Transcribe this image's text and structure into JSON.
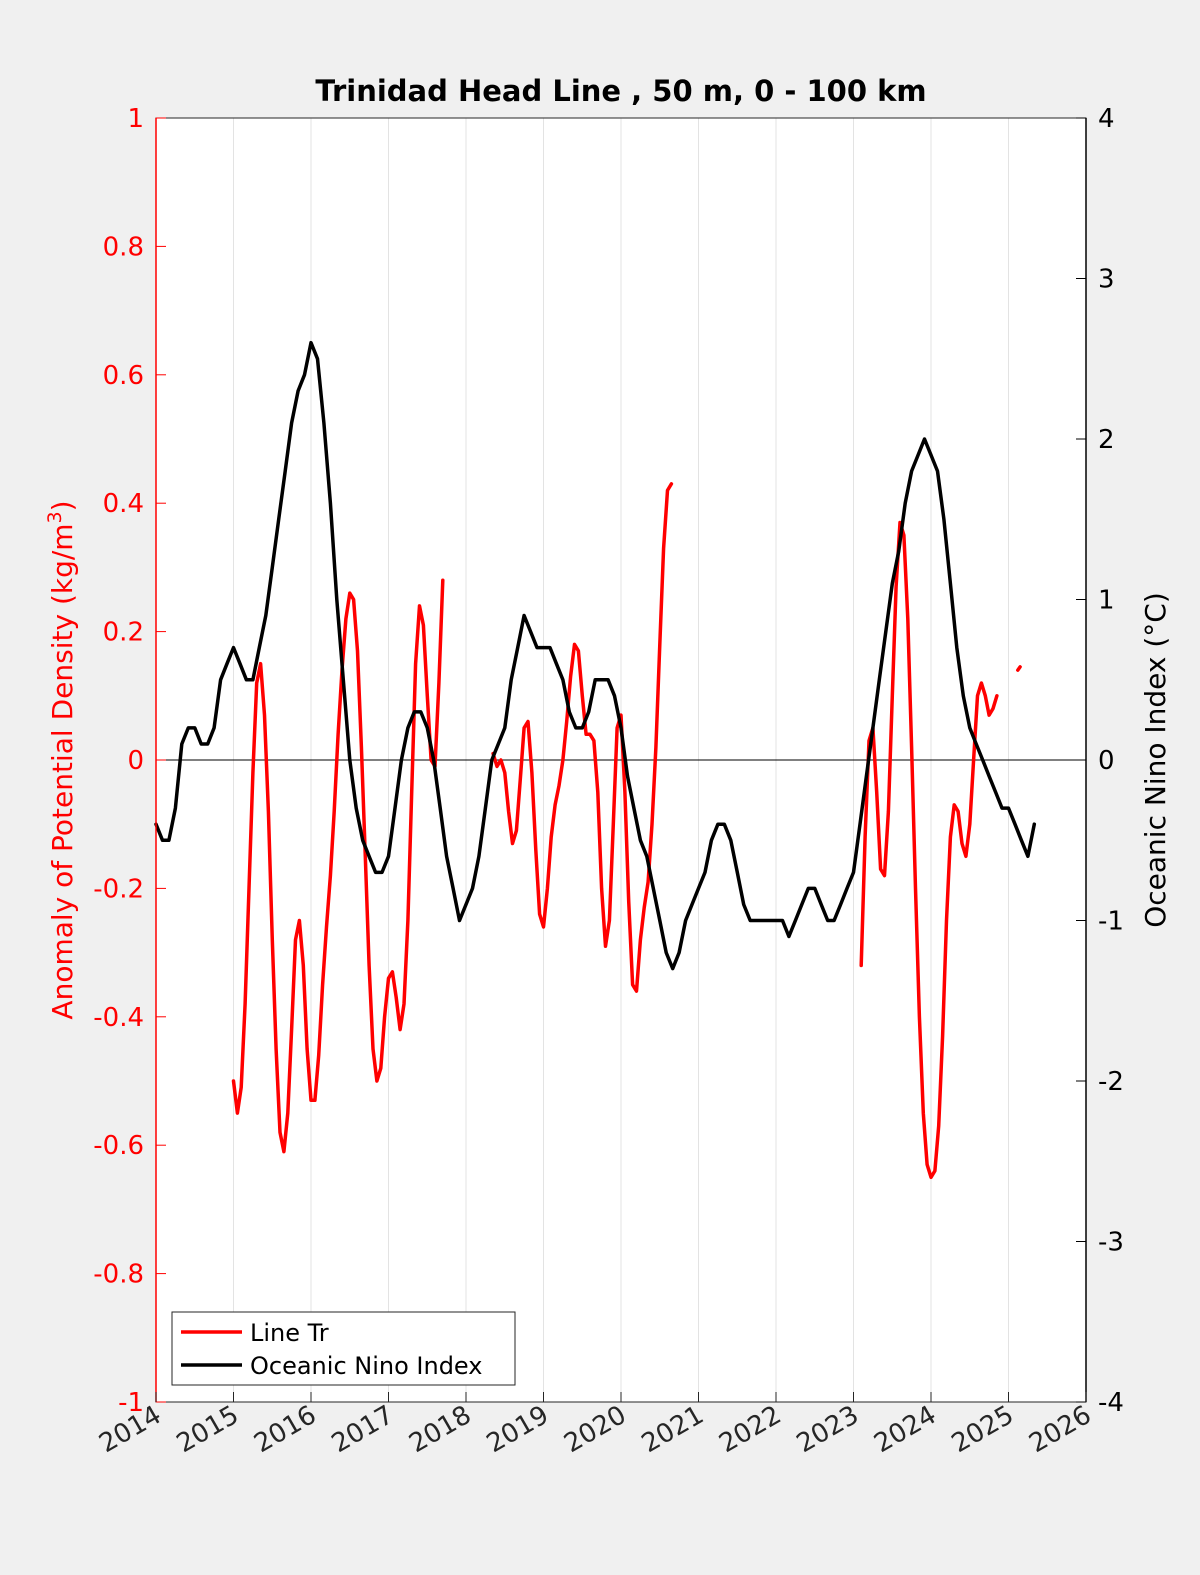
{
  "colors": {
    "figure_background": "#f0f0f0",
    "axes_background": "#ffffff",
    "left_axis": "#ff0000",
    "right_axis": "#000000",
    "grid": "#e3e3e3"
  },
  "chart_data": {
    "type": "line",
    "title": "Trinidad Head Line , 50 m, 0 - 100 km",
    "xlabel": "",
    "xlim": [
      2014,
      2026
    ],
    "xticks": [
      "2014",
      "2015",
      "2016",
      "2017",
      "2018",
      "2019",
      "2020",
      "2021",
      "2022",
      "2023",
      "2024",
      "2025",
      "2026"
    ],
    "grid": "vertical lines at each year",
    "zero_line": true,
    "y_left": {
      "label_main": "Anomaly of Potential Density (kg/m",
      "label_sup": "3",
      "label_end": ")",
      "ylim": [
        -1,
        1
      ],
      "ticks": [
        "-1",
        "-0.8",
        "-0.6",
        "-0.4",
        "-0.2",
        "0",
        "0.2",
        "0.4",
        "0.6",
        "0.8",
        "1"
      ],
      "color": "#ff0000"
    },
    "y_right": {
      "label": "Oceanic Nino Index (°C)",
      "ylim": [
        -4,
        4
      ],
      "ticks": [
        "-4",
        "-3",
        "-2",
        "-1",
        "0",
        "1",
        "2",
        "3",
        "4"
      ],
      "color": "#000000"
    },
    "legend": {
      "placement": "bottom-left",
      "entries": [
        "Line Tr",
        "Oceanic Nino Index"
      ]
    },
    "series": [
      {
        "name": "Line Tr",
        "axis": "left",
        "color": "#ff0000",
        "segments": [
          [
            [
              2015.0,
              -0.5
            ],
            [
              2015.05,
              -0.55
            ],
            [
              2015.1,
              -0.51
            ],
            [
              2015.15,
              -0.38
            ],
            [
              2015.2,
              -0.2
            ],
            [
              2015.25,
              -0.02
            ],
            [
              2015.3,
              0.12
            ],
            [
              2015.35,
              0.15
            ],
            [
              2015.4,
              0.07
            ],
            [
              2015.45,
              -0.08
            ],
            [
              2015.5,
              -0.28
            ],
            [
              2015.55,
              -0.45
            ],
            [
              2015.6,
              -0.58
            ],
            [
              2015.65,
              -0.61
            ],
            [
              2015.7,
              -0.55
            ],
            [
              2015.75,
              -0.42
            ],
            [
              2015.8,
              -0.28
            ],
            [
              2015.85,
              -0.25
            ],
            [
              2015.9,
              -0.32
            ],
            [
              2015.95,
              -0.45
            ],
            [
              2016.0,
              -0.53
            ],
            [
              2016.05,
              -0.53
            ],
            [
              2016.1,
              -0.46
            ],
            [
              2016.15,
              -0.35
            ],
            [
              2016.2,
              -0.26
            ],
            [
              2016.25,
              -0.18
            ],
            [
              2016.3,
              -0.08
            ],
            [
              2016.35,
              0.04
            ],
            [
              2016.4,
              0.14
            ],
            [
              2016.45,
              0.22
            ],
            [
              2016.5,
              0.26
            ],
            [
              2016.55,
              0.25
            ],
            [
              2016.6,
              0.17
            ],
            [
              2016.65,
              0.02
            ],
            [
              2016.7,
              -0.15
            ],
            [
              2016.75,
              -0.32
            ],
            [
              2016.8,
              -0.45
            ],
            [
              2016.85,
              -0.5
            ],
            [
              2016.9,
              -0.48
            ],
            [
              2016.95,
              -0.4
            ],
            [
              2017.0,
              -0.34
            ],
            [
              2017.05,
              -0.33
            ],
            [
              2017.1,
              -0.37
            ],
            [
              2017.15,
              -0.42
            ],
            [
              2017.2,
              -0.38
            ],
            [
              2017.25,
              -0.25
            ],
            [
              2017.3,
              -0.05
            ],
            [
              2017.35,
              0.15
            ],
            [
              2017.4,
              0.24
            ],
            [
              2017.45,
              0.21
            ],
            [
              2017.5,
              0.1
            ],
            [
              2017.55,
              0.0
            ],
            [
              2017.6,
              -0.01
            ],
            [
              2017.65,
              0.12
            ],
            [
              2017.7,
              0.28
            ]
          ],
          [
            [
              2018.35,
              0.01
            ],
            [
              2018.4,
              -0.01
            ],
            [
              2018.45,
              0.0
            ],
            [
              2018.5,
              -0.02
            ],
            [
              2018.55,
              -0.08
            ],
            [
              2018.6,
              -0.13
            ],
            [
              2018.65,
              -0.11
            ],
            [
              2018.7,
              -0.03
            ],
            [
              2018.75,
              0.05
            ],
            [
              2018.8,
              0.06
            ],
            [
              2018.85,
              -0.02
            ],
            [
              2018.9,
              -0.14
            ],
            [
              2018.95,
              -0.24
            ],
            [
              2019.0,
              -0.26
            ],
            [
              2019.05,
              -0.2
            ],
            [
              2019.1,
              -0.12
            ],
            [
              2019.15,
              -0.07
            ],
            [
              2019.2,
              -0.04
            ],
            [
              2019.25,
              0.0
            ],
            [
              2019.3,
              0.06
            ],
            [
              2019.35,
              0.13
            ],
            [
              2019.4,
              0.18
            ],
            [
              2019.45,
              0.17
            ],
            [
              2019.5,
              0.1
            ],
            [
              2019.55,
              0.04
            ],
            [
              2019.6,
              0.04
            ],
            [
              2019.65,
              0.03
            ],
            [
              2019.7,
              -0.05
            ],
            [
              2019.75,
              -0.2
            ],
            [
              2019.8,
              -0.29
            ],
            [
              2019.85,
              -0.25
            ],
            [
              2019.9,
              -0.1
            ],
            [
              2019.95,
              0.05
            ],
            [
              2020.0,
              0.07
            ],
            [
              2020.05,
              -0.05
            ],
            [
              2020.1,
              -0.22
            ],
            [
              2020.15,
              -0.35
            ],
            [
              2020.2,
              -0.36
            ],
            [
              2020.25,
              -0.28
            ],
            [
              2020.3,
              -0.23
            ],
            [
              2020.35,
              -0.19
            ],
            [
              2020.4,
              -0.1
            ],
            [
              2020.45,
              0.02
            ],
            [
              2020.5,
              0.18
            ],
            [
              2020.55,
              0.33
            ],
            [
              2020.6,
              0.42
            ],
            [
              2020.65,
              0.43
            ]
          ],
          [
            [
              2023.1,
              -0.32
            ],
            [
              2023.15,
              -0.12
            ],
            [
              2023.2,
              0.03
            ],
            [
              2023.25,
              0.05
            ],
            [
              2023.3,
              -0.05
            ],
            [
              2023.35,
              -0.17
            ],
            [
              2023.4,
              -0.18
            ],
            [
              2023.45,
              -0.08
            ],
            [
              2023.5,
              0.1
            ],
            [
              2023.55,
              0.27
            ],
            [
              2023.6,
              0.37
            ],
            [
              2023.65,
              0.35
            ],
            [
              2023.7,
              0.22
            ],
            [
              2023.75,
              0.02
            ],
            [
              2023.8,
              -0.2
            ],
            [
              2023.85,
              -0.4
            ],
            [
              2023.9,
              -0.55
            ],
            [
              2023.95,
              -0.63
            ],
            [
              2024.0,
              -0.65
            ],
            [
              2024.05,
              -0.64
            ],
            [
              2024.1,
              -0.57
            ],
            [
              2024.15,
              -0.43
            ],
            [
              2024.2,
              -0.25
            ],
            [
              2024.25,
              -0.12
            ],
            [
              2024.3,
              -0.07
            ],
            [
              2024.35,
              -0.08
            ],
            [
              2024.4,
              -0.13
            ],
            [
              2024.45,
              -0.15
            ],
            [
              2024.5,
              -0.1
            ],
            [
              2024.55,
              0.0
            ],
            [
              2024.6,
              0.1
            ],
            [
              2024.65,
              0.12
            ],
            [
              2024.7,
              0.1
            ],
            [
              2024.75,
              0.07
            ],
            [
              2024.8,
              0.08
            ],
            [
              2024.85,
              0.1
            ]
          ],
          [
            [
              2025.12,
              0.14
            ],
            [
              2025.15,
              0.145
            ]
          ]
        ]
      },
      {
        "name": "Oceanic Nino Index",
        "axis": "right",
        "color": "#000000",
        "x_start": 2014.0,
        "x_step": 0.08333333333333333,
        "values": [
          -0.4,
          -0.5,
          -0.5,
          -0.3,
          0.1,
          0.2,
          0.2,
          0.1,
          0.1,
          0.2,
          0.5,
          0.6,
          0.7,
          0.6,
          0.5,
          0.5,
          0.7,
          0.9,
          1.2,
          1.5,
          1.8,
          2.1,
          2.3,
          2.4,
          2.6,
          2.5,
          2.1,
          1.6,
          1.0,
          0.5,
          0.0,
          -0.3,
          -0.5,
          -0.6,
          -0.7,
          -0.7,
          -0.6,
          -0.3,
          0.0,
          0.2,
          0.3,
          0.3,
          0.2,
          0.0,
          -0.3,
          -0.6,
          -0.8,
          -1.0,
          -0.9,
          -0.8,
          -0.6,
          -0.3,
          0.0,
          0.1,
          0.2,
          0.5,
          0.7,
          0.9,
          0.8,
          0.7,
          0.7,
          0.7,
          0.6,
          0.5,
          0.3,
          0.2,
          0.2,
          0.3,
          0.5,
          0.5,
          0.5,
          0.4,
          0.2,
          -0.1,
          -0.3,
          -0.5,
          -0.6,
          -0.8,
          -1.0,
          -1.2,
          -1.3,
          -1.2,
          -1.0,
          -0.9,
          -0.8,
          -0.7,
          -0.5,
          -0.4,
          -0.4,
          -0.5,
          -0.7,
          -0.9,
          -1.0,
          -1.0,
          -1.0,
          -1.0,
          -1.0,
          -1.0,
          -1.1,
          -1.0,
          -0.9,
          -0.8,
          -0.8,
          -0.9,
          -1.0,
          -1.0,
          -0.9,
          -0.8,
          -0.7,
          -0.4,
          -0.1,
          0.2,
          0.5,
          0.8,
          1.1,
          1.3,
          1.6,
          1.8,
          1.9,
          2.0,
          1.9,
          1.8,
          1.5,
          1.1,
          0.7,
          0.4,
          0.2,
          0.1,
          0.0,
          -0.1,
          -0.2,
          -0.3,
          -0.3,
          -0.4,
          -0.5,
          -0.6,
          -0.4
        ]
      }
    ]
  }
}
